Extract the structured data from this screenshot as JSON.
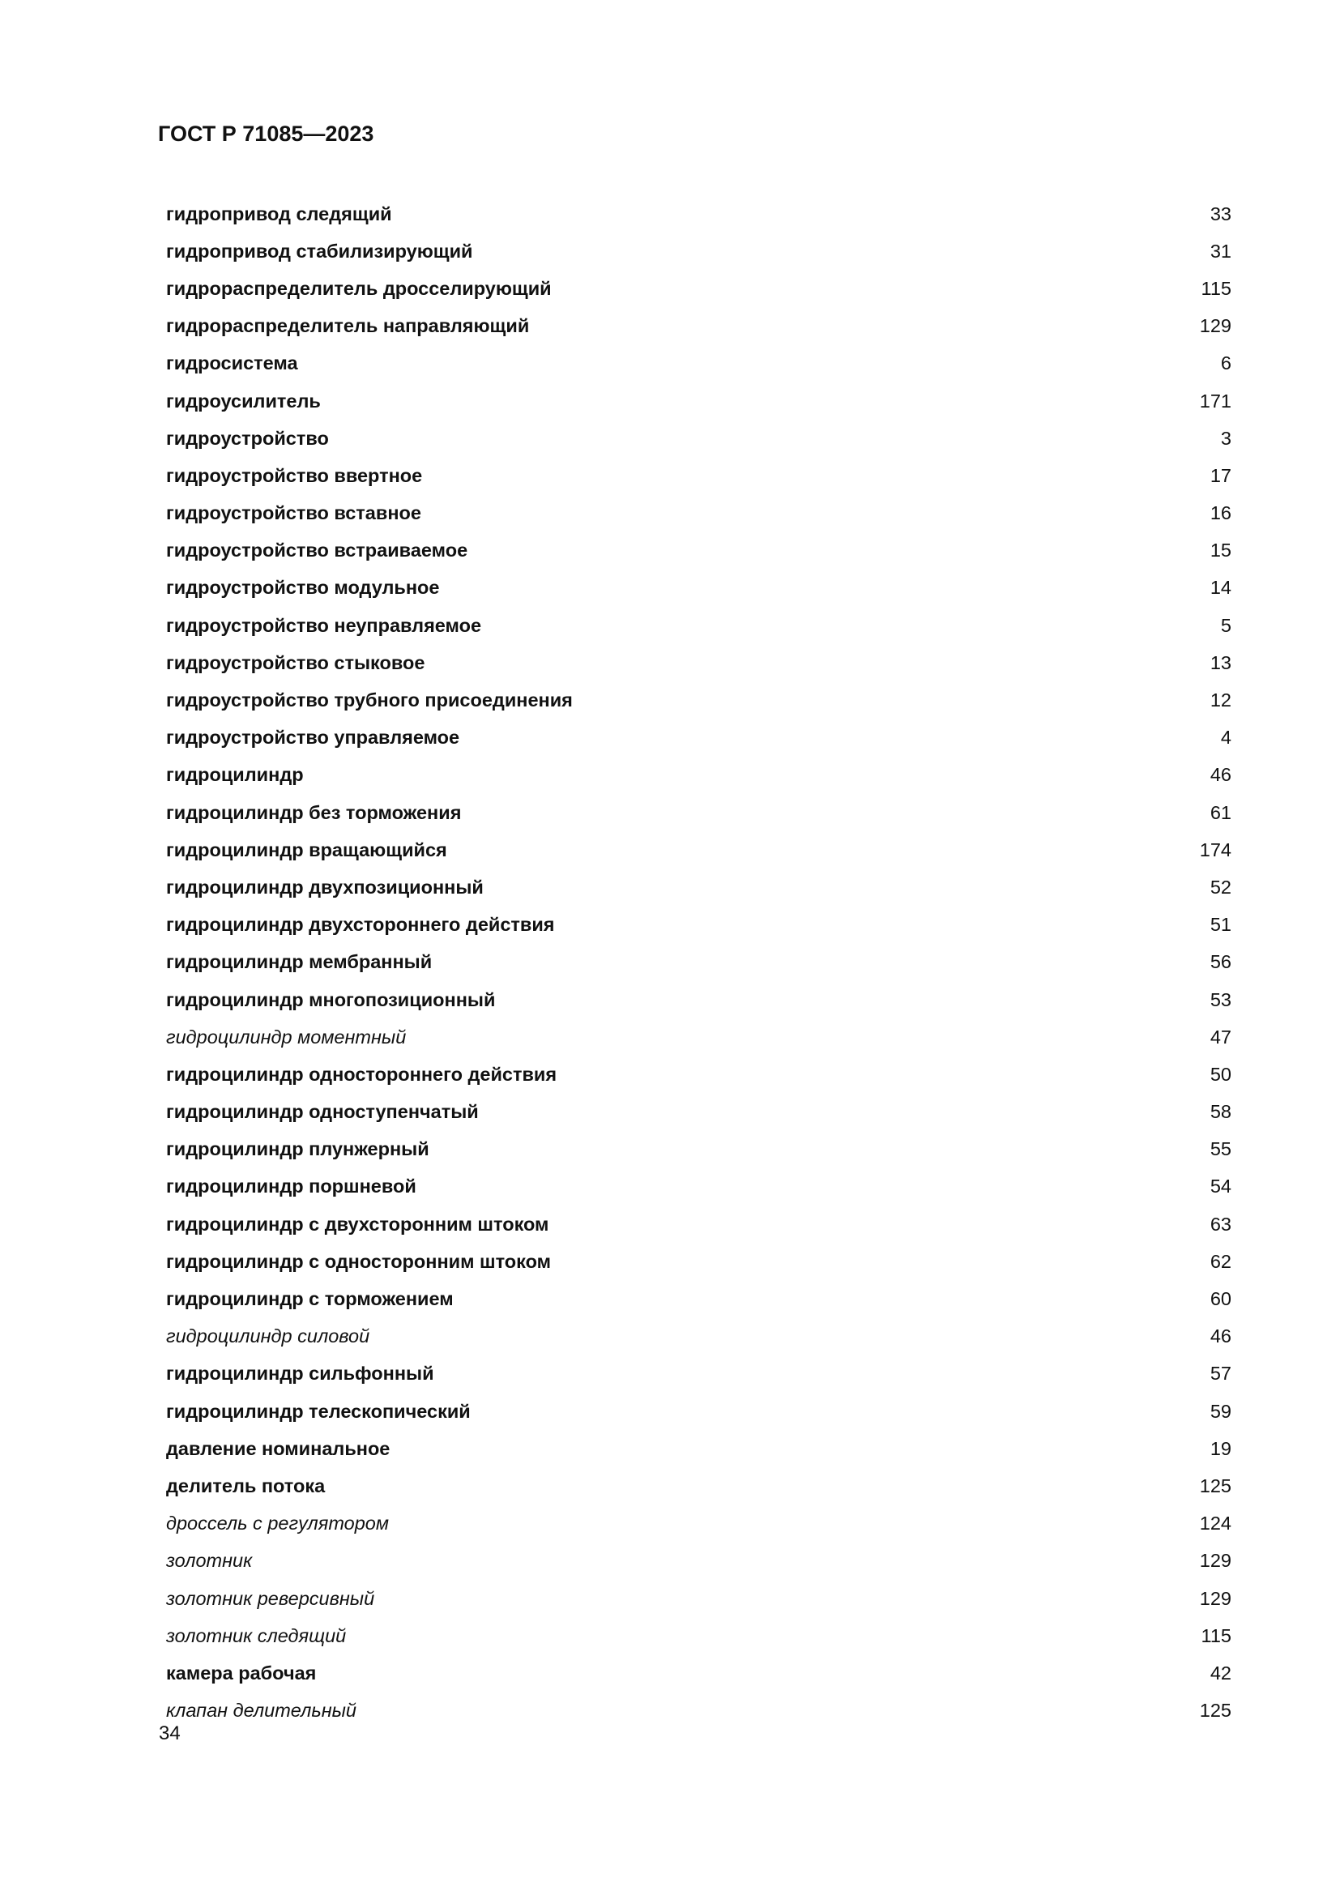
{
  "header": {
    "title": "ГОСТ Р 71085—2023"
  },
  "index": [
    {
      "term": "гидропривод следящий",
      "page": "33",
      "italic": false
    },
    {
      "term": "гидропривод стабилизирующий",
      "page": "31",
      "italic": false
    },
    {
      "term": "гидрораспределитель дросселирующий",
      "page": "115",
      "italic": false
    },
    {
      "term": "гидрораспределитель направляющий",
      "page": "129",
      "italic": false
    },
    {
      "term": "гидросистема",
      "page": "6",
      "italic": false
    },
    {
      "term": "гидроусилитель",
      "page": "171",
      "italic": false
    },
    {
      "term": "гидроустройство",
      "page": "3",
      "italic": false
    },
    {
      "term": "гидроустройство ввертное",
      "page": "17",
      "italic": false
    },
    {
      "term": "гидроустройство вставное",
      "page": "16",
      "italic": false
    },
    {
      "term": "гидроустройство встраиваемое",
      "page": "15",
      "italic": false
    },
    {
      "term": "гидроустройство модульное",
      "page": "14",
      "italic": false
    },
    {
      "term": "гидроустройство неуправляемое",
      "page": "5",
      "italic": false
    },
    {
      "term": "гидроустройство стыковое",
      "page": "13",
      "italic": false
    },
    {
      "term": "гидроустройство трубного присоединения",
      "page": "12",
      "italic": false
    },
    {
      "term": "гидроустройство управляемое",
      "page": "4",
      "italic": false
    },
    {
      "term": "гидроцилиндр",
      "page": "46",
      "italic": false
    },
    {
      "term": "гидроцилиндр без торможения",
      "page": "61",
      "italic": false
    },
    {
      "term": "гидроцилиндр вращающийся",
      "page": "174",
      "italic": false
    },
    {
      "term": "гидроцилиндр двухпозиционный",
      "page": "52",
      "italic": false
    },
    {
      "term": "гидроцилиндр двухстороннего действия",
      "page": "51",
      "italic": false
    },
    {
      "term": "гидроцилиндр мембранный",
      "page": "56",
      "italic": false
    },
    {
      "term": "гидроцилиндр многопозиционный",
      "page": "53",
      "italic": false
    },
    {
      "term": "гидроцилиндр моментный",
      "page": "47",
      "italic": true
    },
    {
      "term": "гидроцилиндр одностороннего действия",
      "page": "50",
      "italic": false
    },
    {
      "term": "гидроцилиндр одноступенчатый",
      "page": "58",
      "italic": false
    },
    {
      "term": "гидроцилиндр плунжерный",
      "page": "55",
      "italic": false
    },
    {
      "term": "гидроцилиндр поршневой",
      "page": "54",
      "italic": false
    },
    {
      "term": "гидроцилиндр с двухсторонним штоком",
      "page": "63",
      "italic": false
    },
    {
      "term": "гидроцилиндр с односторонним штоком",
      "page": "62",
      "italic": false
    },
    {
      "term": "гидроцилиндр с торможением",
      "page": "60",
      "italic": false
    },
    {
      "term": "гидроцилиндр силовой",
      "page": "46",
      "italic": true
    },
    {
      "term": "гидроцилиндр сильфонный",
      "page": "57",
      "italic": false
    },
    {
      "term": "гидроцилиндр телескопический",
      "page": "59",
      "italic": false
    },
    {
      "term": "давление номинальное",
      "page": "19",
      "italic": false
    },
    {
      "term": "делитель потока",
      "page": "125",
      "italic": false
    },
    {
      "term": "дроссель с регулятором",
      "page": "124",
      "italic": true
    },
    {
      "term": "золотник",
      "page": "129",
      "italic": true
    },
    {
      "term": "золотник реверсивный",
      "page": "129",
      "italic": true
    },
    {
      "term": "золотник следящий",
      "page": "115",
      "italic": true
    },
    {
      "term": "камера рабочая",
      "page": "42",
      "italic": false
    },
    {
      "term": "клапан делительный",
      "page": "125",
      "italic": true
    }
  ],
  "footer": {
    "page_number": "34"
  }
}
